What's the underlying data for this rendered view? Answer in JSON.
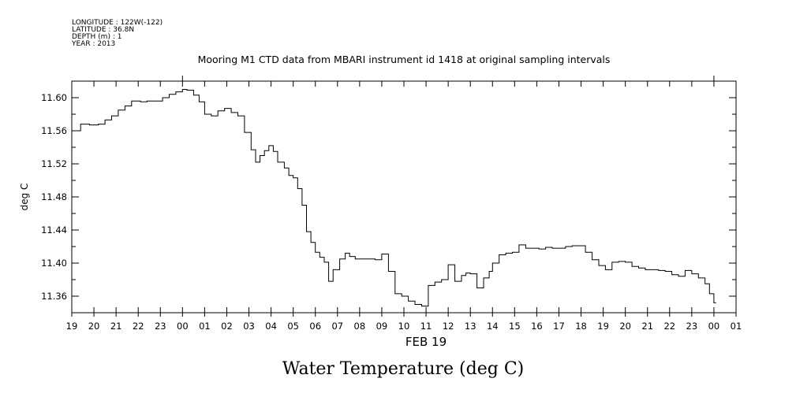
{
  "header": {
    "lines": [
      "LONGITUDE : 122W(-122)",
      "LATITUDE : 36.8N",
      "DEPTH (m) : 1",
      "YEAR : 2013"
    ]
  },
  "caption": "Water Temperature (deg C)",
  "chart_data": {
    "type": "line",
    "title": "Mooring M1 CTD data from MBARI instrument id 1418 at original sampling intervals",
    "xlabel": "FEB 19",
    "ylabel": "deg C",
    "x_unit": "hour (Feb 18 19:00 to Feb 20 01:00)",
    "xlim": [
      19,
      49
    ],
    "ylim": [
      11.34,
      11.62
    ],
    "x_tick_labels": [
      "19",
      "20",
      "21",
      "22",
      "23",
      "00",
      "01",
      "02",
      "03",
      "04",
      "05",
      "06",
      "07",
      "08",
      "09",
      "10",
      "11",
      "12",
      "13",
      "14",
      "15",
      "16",
      "17",
      "18",
      "19",
      "20",
      "21",
      "22",
      "23",
      "00",
      "01"
    ],
    "y_ticks": [
      11.36,
      11.4,
      11.44,
      11.48,
      11.52,
      11.56,
      11.6
    ],
    "y_tick_labels": [
      "11.36",
      "11.40",
      "11.44",
      "11.48",
      "11.52",
      "11.56",
      "11.60"
    ],
    "series": [
      {
        "x": [
          19.0,
          19.4,
          19.8,
          20.2,
          20.5,
          20.8,
          21.1,
          21.4,
          21.7,
          22.1,
          22.4,
          22.8,
          23.1,
          23.4,
          23.7,
          24.0,
          24.2,
          24.5,
          24.75,
          25.0,
          25.3,
          25.6,
          25.9,
          26.2,
          26.5,
          26.8,
          27.1,
          27.3,
          27.5,
          27.7,
          27.9,
          28.1,
          28.3,
          28.6,
          28.8,
          29.0,
          29.2,
          29.4,
          29.6,
          29.8,
          30.0,
          30.2,
          30.4,
          30.6,
          30.8,
          31.1,
          31.35,
          31.55,
          31.8,
          32.1,
          32.4,
          32.7,
          33.0,
          33.3,
          33.6,
          33.9,
          34.2,
          34.5,
          34.8,
          35.1,
          35.4,
          35.7,
          36.0,
          36.3,
          36.6,
          36.8,
          37.0,
          37.3,
          37.6,
          37.85,
          38.0,
          38.3,
          38.6,
          38.9,
          39.2,
          39.5,
          39.8,
          40.1,
          40.4,
          40.7,
          41.0,
          41.3,
          41.6,
          41.9,
          42.2,
          42.5,
          42.8,
          43.1,
          43.4,
          43.7,
          44.0,
          44.3,
          44.6,
          44.9,
          45.2,
          45.5,
          45.8,
          46.1,
          46.4,
          46.7,
          47.0,
          47.3,
          47.6,
          47.8,
          48.0
        ],
        "y": [
          11.56,
          11.568,
          11.567,
          11.568,
          11.573,
          11.578,
          11.585,
          11.59,
          11.596,
          11.595,
          11.596,
          11.596,
          11.6,
          11.604,
          11.607,
          11.61,
          11.609,
          11.603,
          11.595,
          11.58,
          11.578,
          11.584,
          11.587,
          11.582,
          11.578,
          11.558,
          11.537,
          11.522,
          11.53,
          11.536,
          11.542,
          11.535,
          11.522,
          11.515,
          11.506,
          11.503,
          11.49,
          11.47,
          11.438,
          11.425,
          11.413,
          11.407,
          11.401,
          11.378,
          11.392,
          11.405,
          11.412,
          11.408,
          11.405,
          11.405,
          11.405,
          11.404,
          11.411,
          11.39,
          11.363,
          11.36,
          11.354,
          11.35,
          11.348,
          11.373,
          11.377,
          11.38,
          11.398,
          11.378,
          11.385,
          11.388,
          11.387,
          11.37,
          11.382,
          11.39,
          11.4,
          11.41,
          11.412,
          11.413,
          11.422,
          11.418,
          11.418,
          11.417,
          11.419,
          11.418,
          11.418,
          11.42,
          11.421,
          11.421,
          11.413,
          11.404,
          11.397,
          11.392,
          11.401,
          11.402,
          11.401,
          11.396,
          11.394,
          11.392,
          11.392,
          11.391,
          11.39,
          11.386,
          11.384,
          11.391,
          11.387,
          11.382,
          11.375,
          11.363,
          11.352
        ]
      }
    ],
    "grid": false,
    "legend": "none"
  }
}
